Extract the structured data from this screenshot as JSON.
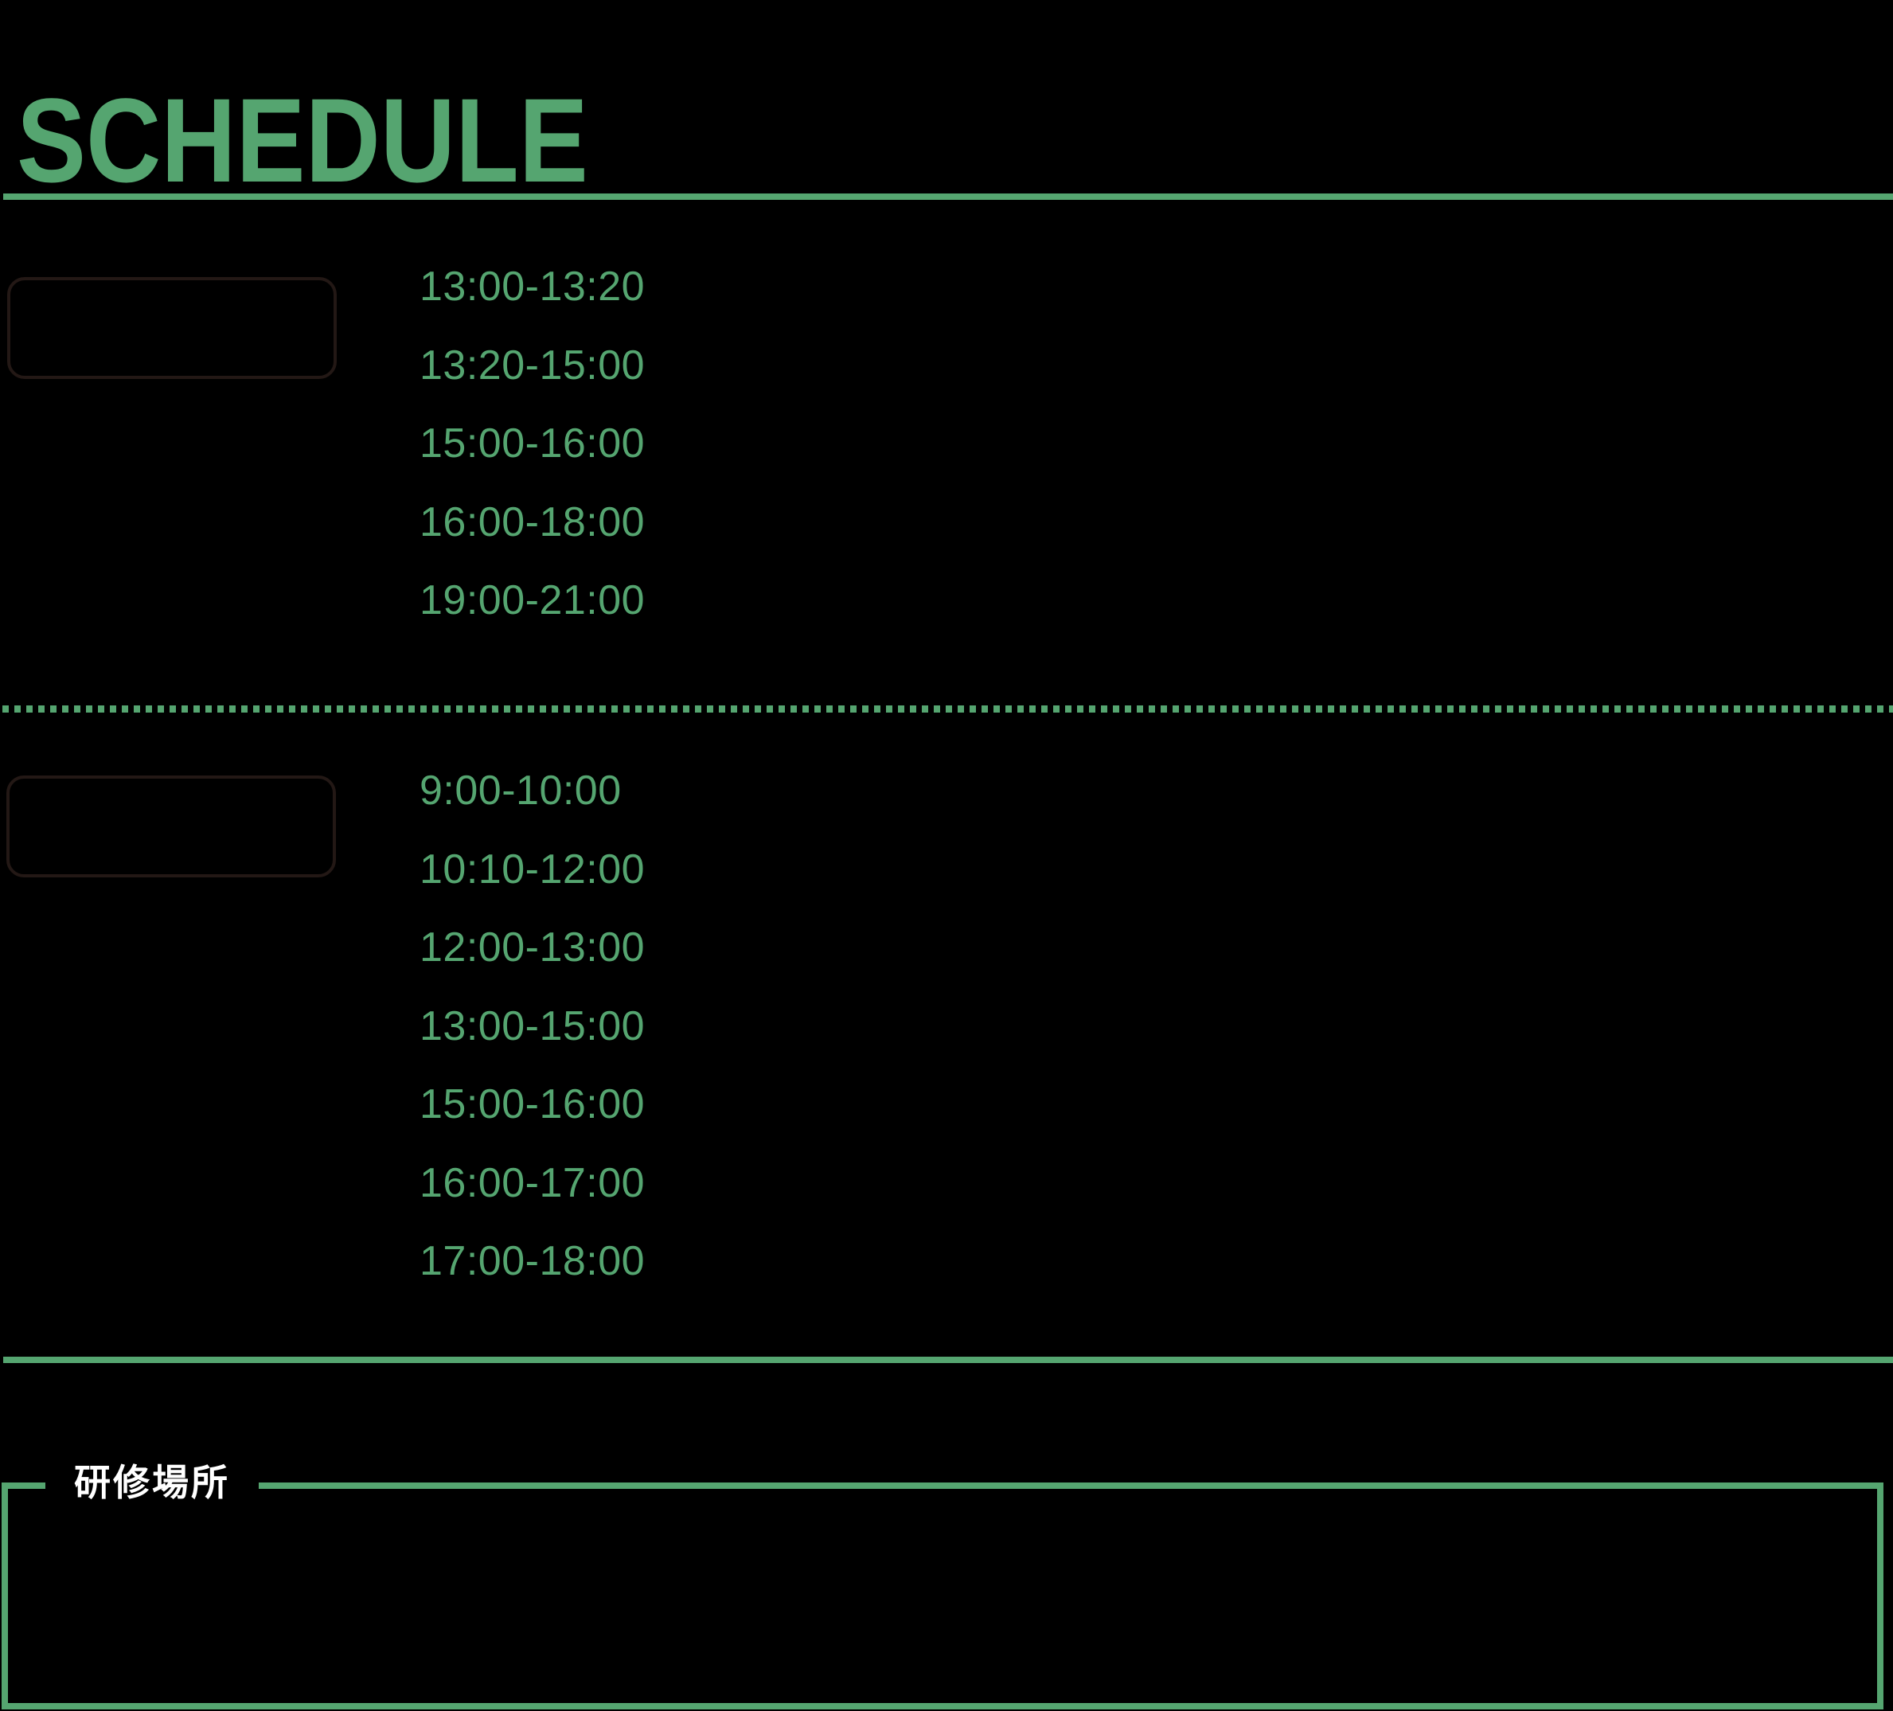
{
  "page": {
    "title": "SCHEDULE"
  },
  "colors": {
    "accent_green": "#55a570",
    "background": "#000000",
    "day_box_border": "#231815",
    "venue_label_text": "#ffffff"
  },
  "schedule": {
    "day1": {
      "times": [
        "13:00-13:20",
        "13:20-15:00",
        "15:00-16:00",
        "16:00-18:00",
        "19:00-21:00"
      ]
    },
    "day2": {
      "times": [
        "9:00-10:00",
        "10:10-12:00",
        "12:00-13:00",
        "13:00-15:00",
        "15:00-16:00",
        "16:00-17:00",
        "17:00-18:00"
      ]
    }
  },
  "venue": {
    "label": "研修場所"
  }
}
